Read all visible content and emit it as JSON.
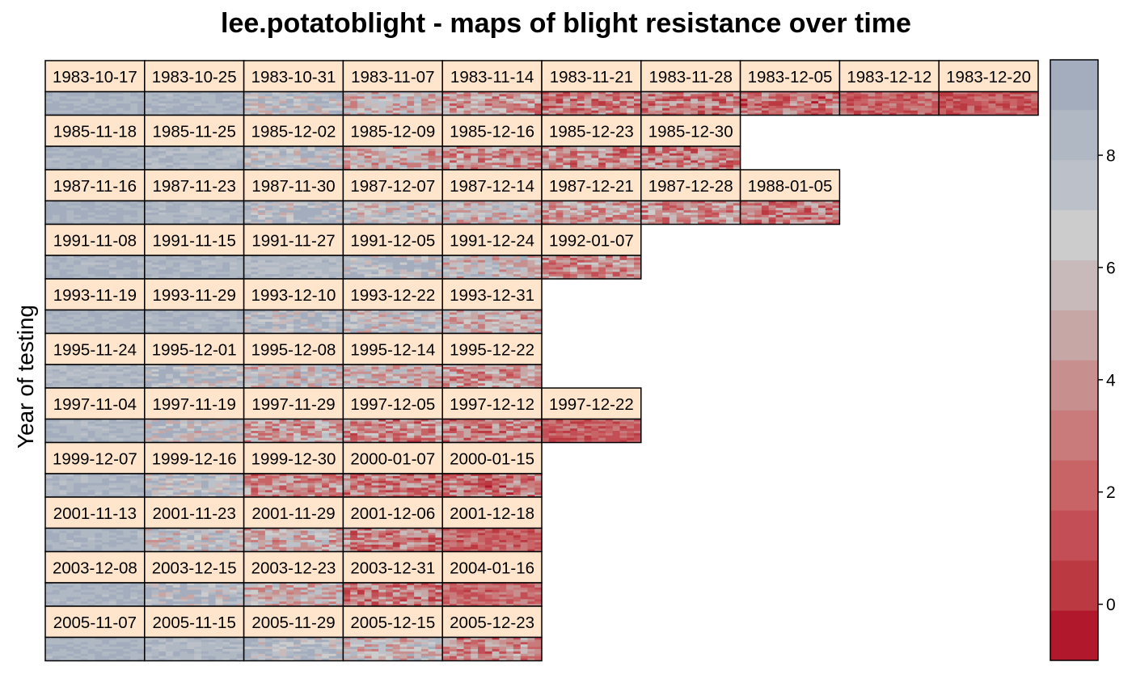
{
  "chart_data": {
    "type": "heatmap",
    "title": "lee.potatoblight - maps of blight resistance over time",
    "ylabel": "Year of testing",
    "xlabel": "",
    "colorbar": {
      "range": [
        -1,
        9.7
      ],
      "ticks": [
        0,
        2,
        4,
        6,
        8
      ],
      "colors": [
        "#B2182B",
        "#BB3A42",
        "#C34E55",
        "#C96466",
        "#C97B7C",
        "#C88F8F",
        "#C7A6A6",
        "#C8BABA",
        "#CCCCCC",
        "#BCC1C9",
        "#B0B8C4",
        "#A3ADBD"
      ],
      "placement": "right"
    },
    "rows": [
      {
        "dates": [
          "1983-10-17",
          "1983-10-25",
          "1983-10-31",
          "1983-11-07",
          "1983-11-14",
          "1983-11-21",
          "1983-11-28",
          "1983-12-05",
          "1983-12-12",
          "1983-12-20"
        ],
        "mean_score": [
          8.9,
          8.7,
          7.6,
          5.6,
          4.0,
          3.3,
          3.0,
          2.6,
          2.2,
          1.6
        ]
      },
      {
        "dates": [
          "1985-11-18",
          "1985-11-25",
          "1985-12-02",
          "1985-12-09",
          "1985-12-16",
          "1985-12-23",
          "1985-12-30"
        ],
        "mean_score": [
          8.7,
          8.3,
          7.5,
          5.2,
          4.0,
          3.5,
          3.2
        ]
      },
      {
        "dates": [
          "1987-11-16",
          "1987-11-23",
          "1987-11-30",
          "1987-12-07",
          "1987-12-14",
          "1987-12-21",
          "1987-12-28",
          "1988-01-05"
        ],
        "mean_score": [
          8.9,
          8.4,
          8.0,
          6.8,
          6.0,
          4.5,
          3.8,
          3.0
        ]
      },
      {
        "dates": [
          "1991-11-08",
          "1991-11-15",
          "1991-11-27",
          "1991-12-05",
          "1991-12-24",
          "1992-01-07"
        ],
        "mean_score": [
          8.7,
          8.6,
          8.2,
          8.0,
          6.2,
          3.8
        ]
      },
      {
        "dates": [
          "1993-11-19",
          "1993-11-29",
          "1993-12-10",
          "1993-12-22",
          "1993-12-31"
        ],
        "mean_score": [
          8.9,
          8.6,
          8.0,
          6.8,
          5.5
        ]
      },
      {
        "dates": [
          "1995-11-24",
          "1995-12-01",
          "1995-12-08",
          "1995-12-14",
          "1995-12-22"
        ],
        "mean_score": [
          8.3,
          8.0,
          6.3,
          5.8,
          4.2
        ]
      },
      {
        "dates": [
          "1997-11-04",
          "1997-11-19",
          "1997-11-29",
          "1997-12-05",
          "1997-12-12",
          "1997-12-22"
        ],
        "mean_score": [
          8.5,
          7.3,
          4.6,
          3.6,
          3.1,
          2.0
        ]
      },
      {
        "dates": [
          "1999-12-07",
          "1999-12-16",
          "1999-12-30",
          "2000-01-07",
          "2000-01-15"
        ],
        "mean_score": [
          8.6,
          7.8,
          3.6,
          3.0,
          2.8
        ]
      },
      {
        "dates": [
          "2001-11-13",
          "2001-11-23",
          "2001-11-29",
          "2001-12-06",
          "2001-12-18"
        ],
        "mean_score": [
          8.6,
          6.6,
          5.2,
          3.2,
          2.1
        ]
      },
      {
        "dates": [
          "2003-12-08",
          "2003-12-15",
          "2003-12-23",
          "2003-12-31",
          "2004-01-16"
        ],
        "mean_score": [
          8.7,
          7.8,
          5.6,
          3.2,
          2.3
        ]
      },
      {
        "dates": [
          "2005-11-07",
          "2005-11-15",
          "2005-11-29",
          "2005-12-15",
          "2005-12-23"
        ],
        "mean_score": [
          8.8,
          8.3,
          8.0,
          6.3,
          3.5
        ]
      }
    ]
  }
}
